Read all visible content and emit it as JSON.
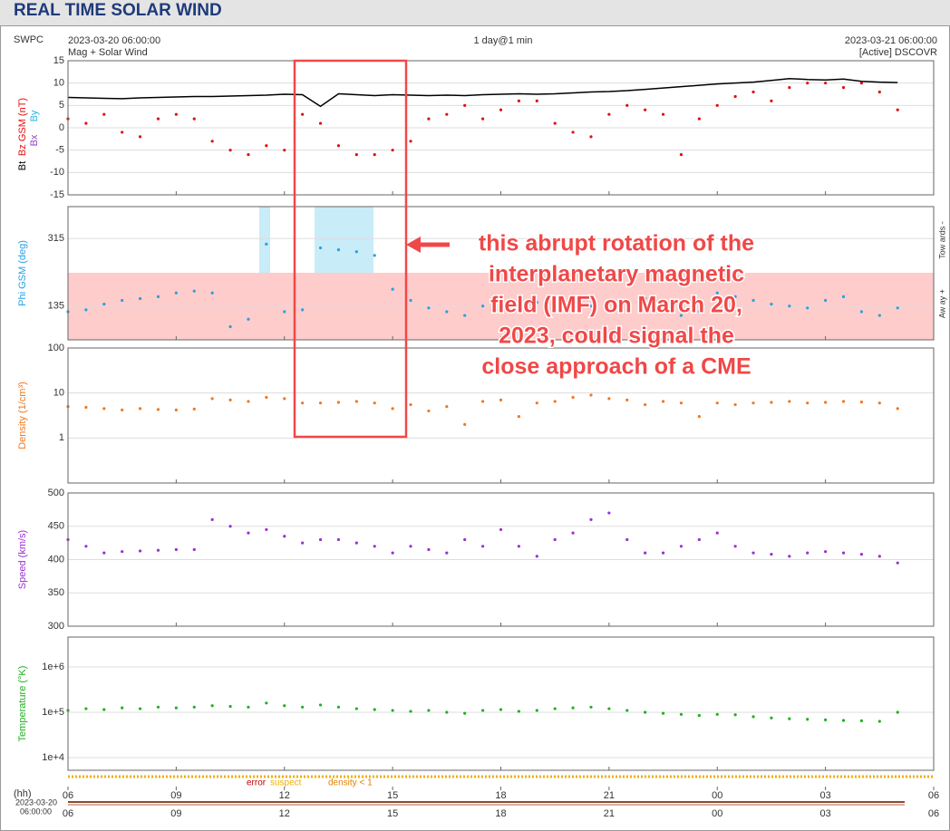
{
  "header": {
    "title": "REAL TIME SOLAR WIND"
  },
  "meta": {
    "source": "SWPC",
    "start": "2023-03-20 06:00:00",
    "product": "Mag + Solar Wind",
    "resolution": "1 day@1 min",
    "end": "2023-03-21 06:00:00",
    "spacecraft": "[Active] DSCOVR"
  },
  "annotation": {
    "lines": [
      "this abrupt rotation of the",
      "interplanetary magnetic",
      "field (IMF) on March 20,",
      "2023, could signal the",
      "close approach of a CME"
    ]
  },
  "quality_legend": [
    {
      "text": "error",
      "color": "#c00000"
    },
    {
      "text": "suspect",
      "color": "#f0b000"
    },
    {
      "text": "density < 1",
      "color": "#e08000"
    }
  ],
  "time_axis": {
    "unit": "(hh)",
    "start_date": "2023-03-20",
    "start_time": "06:00:00"
  },
  "chart_data": [
    {
      "type": "line",
      "xlim": [
        0,
        24
      ],
      "ylim": [
        -15,
        15
      ],
      "yticks": [
        15,
        10,
        5,
        0,
        -5,
        -10,
        -15
      ],
      "grid": true,
      "x": [
        0,
        0.5,
        1,
        1.5,
        2,
        2.5,
        3,
        3.5,
        4,
        4.5,
        5,
        5.5,
        6,
        6.5,
        7,
        7.5,
        8,
        8.5,
        9,
        9.5,
        10,
        10.5,
        11,
        11.5,
        12,
        12.5,
        13,
        13.5,
        14,
        14.5,
        15,
        15.5,
        16,
        16.5,
        17,
        17.5,
        18,
        18.5,
        19,
        19.5,
        20,
        20.5,
        21,
        21.5,
        22,
        22.5,
        23
      ],
      "ylabel_extra": [
        {
          "text": "By",
          "color": "#29b0e0"
        },
        {
          "text": "Bx",
          "color": "#9040c0"
        }
      ],
      "series": [
        {
          "name": "Bt",
          "color": "#000000",
          "style": "line",
          "values": [
            6.8,
            6.7,
            6.6,
            6.5,
            6.7,
            6.8,
            6.9,
            7.0,
            7.0,
            7.1,
            7.2,
            7.3,
            7.5,
            7.4,
            4.8,
            7.6,
            7.4,
            7.2,
            7.4,
            7.3,
            7.2,
            7.3,
            7.2,
            7.4,
            7.5,
            7.6,
            7.5,
            7.6,
            7.8,
            8.0,
            8.1,
            8.3,
            8.6,
            8.9,
            9.2,
            9.5,
            9.8,
            10.0,
            10.2,
            10.6,
            11.0,
            10.8,
            10.7,
            10.9,
            10.4,
            10.2,
            10.1
          ]
        },
        {
          "name": "Bz GSM (nT)",
          "color": "#e01010",
          "style": "dots",
          "values": [
            2,
            1,
            3,
            -1,
            -2,
            2,
            3,
            2,
            -3,
            -5,
            -6,
            -4,
            -5,
            3,
            1,
            -4,
            -6,
            -6,
            -5,
            -3,
            2,
            3,
            5,
            2,
            4,
            6,
            6,
            1,
            -1,
            -2,
            3,
            5,
            4,
            3,
            -6,
            2,
            5,
            7,
            8,
            6,
            9,
            10,
            10,
            9,
            10,
            8,
            4
          ]
        }
      ]
    },
    {
      "type": "scatter",
      "xlim": [
        0,
        24
      ],
      "ylim": [
        45,
        400
      ],
      "yticks": [
        315,
        135
      ],
      "grid": true,
      "right_labels": [
        "Tow ards -",
        "Aw ay +"
      ],
      "x": [
        0,
        0.5,
        1,
        1.5,
        2,
        2.5,
        3,
        3.5,
        4,
        4.5,
        5,
        5.5,
        6,
        6.5,
        7,
        7.5,
        8,
        8.5,
        9,
        9.5,
        10,
        10.5,
        11,
        11.5,
        12,
        12.5,
        13,
        13.5,
        14,
        14.5,
        15,
        15.5,
        16,
        16.5,
        17,
        17.5,
        18,
        18.5,
        19,
        19.5,
        20,
        20.5,
        21,
        21.5,
        22,
        22.5,
        23
      ],
      "series": [
        {
          "name": "Phi GSM (deg)",
          "color": "#29a0e0",
          "values": [
            120,
            125,
            140,
            150,
            155,
            160,
            170,
            175,
            170,
            80,
            100,
            300,
            120,
            125,
            290,
            285,
            280,
            270,
            180,
            150,
            130,
            120,
            110,
            135,
            140,
            150,
            145,
            125,
            130,
            135,
            150,
            140,
            155,
            150,
            110,
            120,
            170,
            160,
            150,
            140,
            135,
            130,
            150,
            160,
            120,
            110,
            130
          ]
        }
      ]
    },
    {
      "type": "scatter",
      "xlim": [
        0,
        24
      ],
      "ylim": [
        0.1,
        100
      ],
      "log": true,
      "yticks": [
        100,
        10,
        1
      ],
      "grid": true,
      "x": [
        0,
        0.5,
        1,
        1.5,
        2,
        2.5,
        3,
        3.5,
        4,
        4.5,
        5,
        5.5,
        6,
        6.5,
        7,
        7.5,
        8,
        8.5,
        9,
        9.5,
        10,
        10.5,
        11,
        11.5,
        12,
        12.5,
        13,
        13.5,
        14,
        14.5,
        15,
        15.5,
        16,
        16.5,
        17,
        17.5,
        18,
        18.5,
        19,
        19.5,
        20,
        20.5,
        21,
        21.5,
        22,
        22.5,
        23
      ],
      "series": [
        {
          "name": "Density (1/cm³)",
          "color": "#f07820",
          "values": [
            5,
            4.8,
            4.5,
            4.2,
            4.5,
            4.3,
            4.2,
            4.4,
            7.5,
            7,
            6.5,
            8,
            7.5,
            6,
            6,
            6.2,
            6.5,
            6,
            4.5,
            5.5,
            4,
            5,
            2,
            6.5,
            7,
            3,
            6,
            6.5,
            8,
            9,
            7.5,
            7,
            5.5,
            6.5,
            6,
            3,
            6,
            5.5,
            6,
            6.2,
            6.5,
            6,
            6.2,
            6.5,
            6.3,
            6,
            4.5
          ]
        }
      ]
    },
    {
      "type": "scatter",
      "xlim": [
        0,
        24
      ],
      "ylim": [
        300,
        500
      ],
      "yticks": [
        500,
        450,
        400,
        350,
        300
      ],
      "grid": true,
      "x": [
        0,
        0.5,
        1,
        1.5,
        2,
        2.5,
        3,
        3.5,
        4,
        4.5,
        5,
        5.5,
        6,
        6.5,
        7,
        7.5,
        8,
        8.5,
        9,
        9.5,
        10,
        10.5,
        11,
        11.5,
        12,
        12.5,
        13,
        13.5,
        14,
        14.5,
        15,
        15.5,
        16,
        16.5,
        17,
        17.5,
        18,
        18.5,
        19,
        19.5,
        20,
        20.5,
        21,
        21.5,
        22,
        22.5,
        23
      ],
      "series": [
        {
          "name": "Speed (km/s)",
          "color": "#9a30d0",
          "values": [
            430,
            420,
            410,
            412,
            413,
            414,
            415,
            415,
            460,
            450,
            440,
            445,
            435,
            425,
            430,
            430,
            425,
            420,
            410,
            420,
            415,
            410,
            430,
            420,
            445,
            420,
            405,
            430,
            440,
            460,
            470,
            430,
            410,
            410,
            420,
            430,
            440,
            420,
            410,
            408,
            405,
            410,
            412,
            410,
            408,
            405,
            395
          ]
        }
      ]
    },
    {
      "type": "scatter",
      "xlim": [
        0,
        24
      ],
      "ylim": [
        5250,
        4570000
      ],
      "log": true,
      "yticks": [
        {
          "value": 1000000,
          "label": "1e+6"
        },
        {
          "value": 100000,
          "label": "1e+5"
        },
        {
          "value": 10000,
          "label": "1e+4"
        }
      ],
      "grid": true,
      "xticks": [
        {
          "value": 0,
          "label": "06"
        },
        {
          "value": 3,
          "label": "09"
        },
        {
          "value": 6,
          "label": "12"
        },
        {
          "value": 9,
          "label": "15"
        },
        {
          "value": 12,
          "label": "18"
        },
        {
          "value": 15,
          "label": "21"
        },
        {
          "value": 18,
          "label": "00"
        },
        {
          "value": 21,
          "label": "03"
        },
        {
          "value": 24,
          "label": "06"
        }
      ],
      "x": [
        0,
        0.5,
        1,
        1.5,
        2,
        2.5,
        3,
        3.5,
        4,
        4.5,
        5,
        5.5,
        6,
        6.5,
        7,
        7.5,
        8,
        8.5,
        9,
        9.5,
        10,
        10.5,
        11,
        11.5,
        12,
        12.5,
        13,
        13.5,
        14,
        14.5,
        15,
        15.5,
        16,
        16.5,
        17,
        17.5,
        18,
        18.5,
        19,
        19.5,
        20,
        20.5,
        21,
        21.5,
        22,
        22.5,
        23
      ],
      "series": [
        {
          "name": "Temperature (°K)",
          "color": "#20b020",
          "values": [
            110000,
            120000,
            115000,
            125000,
            120000,
            130000,
            125000,
            130000,
            140000,
            135000,
            130000,
            160000,
            140000,
            130000,
            145000,
            130000,
            120000,
            115000,
            110000,
            105000,
            110000,
            100000,
            95000,
            110000,
            115000,
            105000,
            110000,
            120000,
            125000,
            130000,
            120000,
            110000,
            100000,
            95000,
            90000,
            85000,
            90000,
            88000,
            80000,
            75000,
            72000,
            70000,
            68000,
            66000,
            65000,
            63000,
            100000
          ]
        }
      ]
    }
  ]
}
